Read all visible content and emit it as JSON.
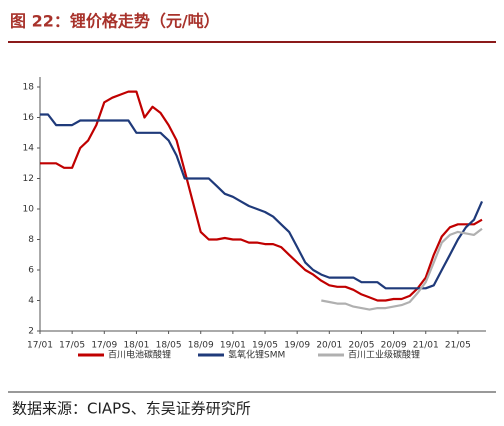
{
  "header": {
    "title": "图 22：锂价格走势（元/吨）"
  },
  "chart_data": {
    "type": "line",
    "categories": [
      "17/01",
      null,
      null,
      null,
      "17/05",
      null,
      null,
      null,
      "17/09",
      null,
      null,
      null,
      "18/01",
      null,
      null,
      null,
      "18/05",
      null,
      null,
      null,
      "18/09",
      null,
      null,
      null,
      "19/01",
      null,
      null,
      null,
      "19/05",
      null,
      null,
      null,
      "19/09",
      null,
      null,
      null,
      "20/01",
      null,
      null,
      null,
      "20/05",
      null,
      null,
      null,
      "20/09",
      null,
      null,
      null,
      "21/01",
      null,
      null,
      null,
      "21/05",
      null,
      null,
      null
    ],
    "series": [
      {
        "name": "百川电池碳酸锂",
        "color": "#c00000",
        "values": [
          13,
          13,
          13,
          12.7,
          12.7,
          14,
          14.5,
          15.5,
          17,
          17.3,
          17.5,
          17.7,
          17.7,
          16,
          16.7,
          16.3,
          15.5,
          14.5,
          12.5,
          10.5,
          8.5,
          8,
          8,
          8.1,
          8,
          8,
          7.8,
          7.8,
          7.7,
          7.7,
          7.5,
          7,
          6.5,
          6,
          5.7,
          5.3,
          5,
          4.9,
          4.9,
          4.7,
          4.4,
          4.2,
          4,
          4,
          4.1,
          4.1,
          4.3,
          4.8,
          5.5,
          7,
          8.2,
          8.8,
          9,
          9,
          9,
          9.3
        ]
      },
      {
        "name": "氢氧化锂SMM",
        "color": "#1f3a7a",
        "values": [
          16.2,
          16.2,
          15.5,
          15.5,
          15.5,
          15.8,
          15.8,
          15.8,
          15.8,
          15.8,
          15.8,
          15.8,
          15,
          15,
          15,
          15,
          14.5,
          13.5,
          12,
          12,
          12,
          12,
          11.5,
          11,
          10.8,
          10.5,
          10.2,
          10,
          9.8,
          9.5,
          9,
          8.5,
          7.5,
          6.5,
          6,
          5.7,
          5.5,
          5.5,
          5.5,
          5.5,
          5.2,
          5.2,
          5.2,
          4.8,
          4.8,
          4.8,
          4.8,
          4.8,
          4.8,
          5,
          6,
          7,
          8,
          8.8,
          9.3,
          10.5
        ]
      },
      {
        "name": "百川工业级碳酸锂",
        "color": "#b0b0b0",
        "values": [
          null,
          null,
          null,
          null,
          null,
          null,
          null,
          null,
          null,
          null,
          null,
          null,
          null,
          null,
          null,
          null,
          null,
          null,
          null,
          null,
          null,
          null,
          null,
          null,
          null,
          null,
          null,
          null,
          null,
          null,
          null,
          null,
          null,
          null,
          null,
          4,
          3.9,
          3.8,
          3.8,
          3.6,
          3.5,
          3.4,
          3.5,
          3.5,
          3.6,
          3.7,
          3.9,
          4.5,
          5.2,
          6.5,
          7.8,
          8.3,
          8.5,
          8.4,
          8.3,
          8.7
        ]
      }
    ],
    "ylim": [
      2,
      18
    ],
    "yticks": [
      2,
      4,
      6,
      8,
      10,
      12,
      14,
      16,
      18
    ]
  },
  "footer": {
    "source": "数据来源：CIAPS、东吴证券研究所"
  }
}
